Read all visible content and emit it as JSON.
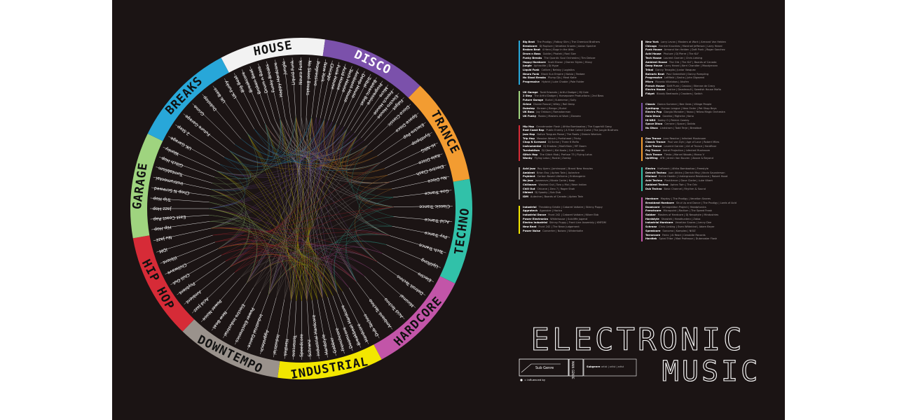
{
  "poster": {
    "background": "#1b1414",
    "title_line1": "ELECTRONIC",
    "title_line2": "MUSIC",
    "key": {
      "sub_genre": "Sub Genre",
      "main_genre": "MAIN GENRE",
      "influenced_by": "= influenced by",
      "subgenre_label": "Subgenre",
      "subgenre_desc": "artist | artist | artist"
    }
  },
  "wheel": {
    "main_genres": [
      {
        "name": "HOUSE",
        "color": "#f2f2f2",
        "text_color": "#111111",
        "subs": [
          "Big Beat",
          "Breakcore",
          "Broken Beat",
          "Drum n Bass",
          "Funky Breaks",
          "Happy Hardcore",
          "Jungle",
          "Liquid Funk",
          "Neuro Funk",
          "No Skool Breaks",
          "Progressive"
        ]
      },
      {
        "name": "DISCO",
        "color": "#7b51ab",
        "text_color": "#ffffff",
        "subs": [
          "New York",
          "Chicago",
          "Funk House",
          "Acid House",
          "Tech House",
          "Ambient House",
          "Deep House",
          "Tribal",
          "Balearic Beat",
          "Progressive",
          "Micro",
          "French House",
          "Electro House",
          "Fidget"
        ]
      },
      {
        "name": "TRANCE",
        "color": "#f39c31",
        "text_color": "#111111",
        "subs": [
          "Disco Classic",
          "Space Disco",
          "Electro Pop",
          "Synthpop",
          "Hi-NRG",
          "Italo Disco",
          "Electro Clash",
          "Nu Disco"
        ]
      },
      {
        "name": "TECHNO",
        "color": "#31c1a9",
        "text_color": "#111111",
        "subs": [
          "Goa Trance",
          "Classic Trance",
          "Acid Trance",
          "Psy Trance",
          "Tech Trance",
          "Uplifting"
        ]
      },
      {
        "name": "HARDCORE",
        "color": "#c255a8",
        "text_color": "#111111",
        "subs": [
          "Electro",
          "Detroit Techno",
          "Minimal",
          "Acid Techno",
          "Ambient Techno",
          "Dub Techno"
        ]
      },
      {
        "name": "INDUSTRIAL",
        "color": "#f2e600",
        "text_color": "#111111",
        "subs": [
          "Hardcore",
          "Breakbeat Hardcore",
          "Doomcore",
          "Frenchcore",
          "Gabber",
          "Hardstyle",
          "Industrial Hardcore",
          "Schranz",
          "Speedcore",
          "Terrorcore",
          "Hardtek"
        ]
      },
      {
        "name": "DOWNTEMPO",
        "color": "#9a928c",
        "text_color": "#111111",
        "subs": [
          "Industrial",
          "Aggrotech",
          "Industrial Dance",
          "Power Electronics",
          "Electro Industrial",
          "New Beat",
          "Power Noise"
        ]
      },
      {
        "name": "HIP HOP",
        "color": "#d62b37",
        "text_color": "#111111",
        "subs": [
          "Acid Jazz",
          "Ambient",
          "Psybient",
          "Chill Out",
          "Chillwave",
          "Illbient",
          "IDM",
          "Nu Jazz"
        ]
      },
      {
        "name": "GARAGE",
        "color": "#9fd47f",
        "text_color": "#111111",
        "subs": [
          "Hip Hop",
          "East Coast Rap",
          "Jazz Hop",
          "Trip Hop",
          "Chop N Screwed",
          "Instrumental",
          "Turntablism",
          "Glitch Hop",
          "Wonky"
        ]
      },
      {
        "name": "BREAKS",
        "color": "#28a7d9",
        "text_color": "#111111",
        "subs": [
          "UK Garage",
          "2 Step",
          "Future Garage",
          "Grime",
          "Dubstep",
          "UK Bass",
          "UK Funky"
        ]
      }
    ]
  },
  "legend": {
    "left": [
      {
        "color": "#28a7d9",
        "rows": [
          {
            "g": "Big Beat",
            "a": "The Prodigy | Fatboy Slim | The Chemical Brothers"
          },
          {
            "g": "Breakcore",
            "a": "DJ Rupture | Venetian Snares | Aaron Spectre"
          },
          {
            "g": "Broken Beat",
            "a": "4 Hero | Bugz in the Attic"
          },
          {
            "g": "Drum n Bass",
            "a": "Goldie | Photek | Roni Size"
          },
          {
            "g": "Funky Breaks",
            "a": "The Quantic Soul Orchestra | Tim Deluxe"
          },
          {
            "g": "Happy Hardcore",
            "a": "Scott Brown | Darren Styles | Hixxy"
          },
          {
            "g": "Jungle",
            "a": "Aphrodite | Dj Hype"
          },
          {
            "g": "Liquid Funk",
            "a": "Calibre | Netsky | Logistics"
          },
          {
            "g": "Neuro Funk",
            "a": "Black Sun Empire | Noisia | Teebee"
          },
          {
            "g": "No Skool Breaks",
            "a": "Plump DJs | Meat Katie"
          },
          {
            "g": "Progressive",
            "a": "Hybrid | Luke Chable | Pole Folder"
          }
        ]
      },
      {
        "color": "#9fd47f",
        "rows": [
          {
            "g": "UK Garage",
            "a": "Todd Edwards | Artful Dodger | MJ Cole"
          },
          {
            "g": "2 Step",
            "a": "The Artful Dodger | Horsepower Productions | 2nd Bass"
          },
          {
            "g": "Future Garage",
            "a": "Burial | Submerse | Sully"
          },
          {
            "g": "Grime",
            "a": "Dizzee Rascal | Wiley | Roll Deep"
          },
          {
            "g": "Dubstep",
            "a": "Skream | Benga | Burial"
          },
          {
            "g": "UK Bass",
            "a": "Joy Orbison | Ramadanman"
          },
          {
            "g": "UK Funky",
            "a": "Roska | Masters at Work | Donaeo"
          }
        ]
      },
      {
        "color": "#d62b37",
        "rows": [
          {
            "g": "Hip Hop",
            "a": "Grandmaster Flash | Afrika Bambaataa | The Sugarhill Gang"
          },
          {
            "g": "East Coast Rap",
            "a": "Public Enemy | A Tribe Called Quest | The Jungle Brothers"
          },
          {
            "g": "Jazz Hop",
            "a": "Native Tongues Posse | The Roots | Dream Warriors"
          },
          {
            "g": "Trip Hop",
            "a": "Massive Attack | Portishead | Tricky"
          },
          {
            "g": "Chop N Screwed",
            "a": "DJ Screw | Three 6 Mafia"
          },
          {
            "g": "Instrumental",
            "a": "DJ Shadow | MadVillain | MF Doom"
          },
          {
            "g": "Turntablism",
            "a": "DJ Qbert | Kid Koala | Cut Chemist"
          },
          {
            "g": "Glitch Hop",
            "a": "The Glitch Mob | Prefuse 73 | Flying Lotus"
          },
          {
            "g": "Wonky",
            "a": "Flying Lotus | Rustie | Zomby"
          }
        ]
      },
      {
        "color": "#9a928c",
        "rows": [
          {
            "g": "Acid Jazz",
            "a": "Roy Ayers | Jamiroquai | Brand New Heavies"
          },
          {
            "g": "Ambient",
            "a": "Brian Eno | Aphex Twin | Autechre"
          },
          {
            "g": "Psybient",
            "a": "Carbon Based Lifeforms | Entheogenic"
          },
          {
            "g": "Nu Jazz",
            "a": "Jazzanova | Nicola Conte | Koop"
          },
          {
            "g": "Chillwave",
            "a": "Washed Out | Toro y Moi | Neon Indian"
          },
          {
            "g": "Chill Out",
            "a": "Chicane | Zero 7 | Roger Shah"
          },
          {
            "g": "Illbient",
            "a": "DJ Spooky | Sub Dub"
          },
          {
            "g": "IDM",
            "a": "Autechre | Boards of Canada | Aphex Twin"
          }
        ]
      },
      {
        "color": "#f2e600",
        "rows": [
          {
            "g": "Industrial",
            "a": "Throbbing Gristle | Cabaret Voltaire | Skinny Puppy"
          },
          {
            "g": "Aggrotech",
            "a": "Agonoize | Hocico"
          },
          {
            "g": "Industrial Dance",
            "a": "Front 242 | Cabaret Voltaire | Nitzer Ebb"
          },
          {
            "g": "Power Electronics",
            "a": "Whitehouse | Sutcliffe Jugend"
          },
          {
            "g": "Electro Industrial",
            "a": "Skinny Puppy | Front Line Assembly | KMFDM"
          },
          {
            "g": "New Beat",
            "a": "Front 242 | The Neon Judgement"
          },
          {
            "g": "Power Noise",
            "a": "Converter | Noisex | Winterkalte"
          }
        ]
      }
    ],
    "right": [
      {
        "color": "#f2f2f2",
        "rows": [
          {
            "g": "New York",
            "a": "Larry Levan | Masters at Work | Armand Van Helden"
          },
          {
            "g": "Chicago",
            "a": "Frankie Knuckles | Marshall Jefferson | Larry Heard"
          },
          {
            "g": "Funk House",
            "a": "Armand Van Helden | Daft Punk | Roger Sanchez"
          },
          {
            "g": "Acid House",
            "a": "Phuture | DJ Pierre | The KLF"
          },
          {
            "g": "Tech House",
            "a": "Laurent Garnier | Chris Liebing"
          },
          {
            "g": "Ambient House",
            "a": "The Orb | The KLF | Boards of Canada"
          },
          {
            "g": "Deep House",
            "a": "Larry Heard | Kerri Chandler | Moodymann"
          },
          {
            "g": "Tribal",
            "a": "Danny Tenaglia | Junior Vasquez"
          },
          {
            "g": "Balearic Beat",
            "a": "Paul Oakenfold | Danny Rampling"
          },
          {
            "g": "Progressive",
            "a": "Leftfield | Sasha | John Digweed"
          },
          {
            "g": "Micro",
            "a": "Ricardo Villalobos | Akufen"
          },
          {
            "g": "French House",
            "a": "Daft Punk | Cassius | Etienne de Crecy"
          },
          {
            "g": "Electro House",
            "a": "Justice | Deadmau5 | Swedish House Mafia"
          },
          {
            "g": "Fidget",
            "a": "Bloody Beetroots | Crookers | Switch"
          }
        ]
      },
      {
        "color": "#7b51ab",
        "rows": [
          {
            "g": "Classic",
            "a": "Donna Summer | Bee Gees | Village People"
          },
          {
            "g": "Synthpop",
            "a": "Human League | New Order | Pet Shop Boys"
          },
          {
            "g": "Electro Pop",
            "a": "Giorgio Moroder | Yazoo | Yellow Magic Orchestra"
          },
          {
            "g": "Italo Disco",
            "a": "Gazebo | Righeira | Kano"
          },
          {
            "g": "Hi-NRG",
            "a": "Bobby O | Patrick Cowley"
          },
          {
            "g": "Space Disco",
            "a": "Cerrone | Space | Dalida"
          },
          {
            "g": "Nu Disco",
            "a": "Lindstrom | Todd Terje | Breakbot"
          }
        ]
      },
      {
        "color": "#f39c31",
        "rows": [
          {
            "g": "Goa Trance",
            "a": "Juno Reactor | Infected Mushroom"
          },
          {
            "g": "Classic Trance",
            "a": "Paul van Dyk | Age of Love | Robert Miles"
          },
          {
            "g": "Acid Trance",
            "a": "Laurent Garnier | Art of Trance | Hardfloor"
          },
          {
            "g": "Psy Trance",
            "a": "Astral Projection | Infected Mushroom"
          },
          {
            "g": "Tech Trance",
            "a": "Tiesto | Marcel Woods | Marco V"
          },
          {
            "g": "Uplifting",
            "a": "ATB | Armin Van Buuren | Above & Beyond"
          }
        ]
      },
      {
        "color": "#31c1a9",
        "rows": [
          {
            "g": "Electro",
            "a": "Kraftwerk | Afrika Bambaataa | Freestyle"
          },
          {
            "g": "Detroit Techno",
            "a": "Juan Atkins | Derrick May | Kevin Saunderson"
          },
          {
            "g": "Minimal",
            "a": "Richie Hawtin | Underground Resistance | Robert Hood"
          },
          {
            "g": "Acid Techno",
            "a": "Plastikman | Dave Clarke | Luke Vibert"
          },
          {
            "g": "Ambient Techno",
            "a": "Aphex Twin | The Orb"
          },
          {
            "g": "Dub Techno",
            "a": "Basic Channel | Rhythm & Sound"
          }
        ]
      },
      {
        "color": "#c255a8",
        "rows": [
          {
            "g": "Hardcore",
            "a": "Mayday | The Prodigy | Venetian Snares"
          },
          {
            "g": "Breakbeat Hardcore",
            "a": "Shut Up and Dance | The Prodigy | Lords of Acid"
          },
          {
            "g": "Doomcore",
            "a": "Armageddon Project | Headphonics"
          },
          {
            "g": "Frenchcore",
            "a": "Micropoint | Radium | The Speed Freak"
          },
          {
            "g": "Gabber",
            "a": "Masters of Hardcore | DJ Neophyte | Mindustries"
          },
          {
            "g": "Hardstyle",
            "a": "Showtek | Headhunterz | Zatox"
          },
          {
            "g": "Industrial Hardcore",
            "a": "Venetian Snares | Lenny Dee"
          },
          {
            "g": "Schranz",
            "a": "Chris Liebing | Sven Wittekind | Adam Beyer"
          },
          {
            "g": "Speedcore",
            "a": "Sarcoma | Komplex | NOIZ"
          },
          {
            "g": "Terrorcore",
            "a": "Fenix | Al Read | Cenobite Records"
          },
          {
            "g": "Hardtek",
            "a": "Spiral Tribe | Mad Professor | Dubmaster Flash"
          }
        ]
      }
    ]
  }
}
